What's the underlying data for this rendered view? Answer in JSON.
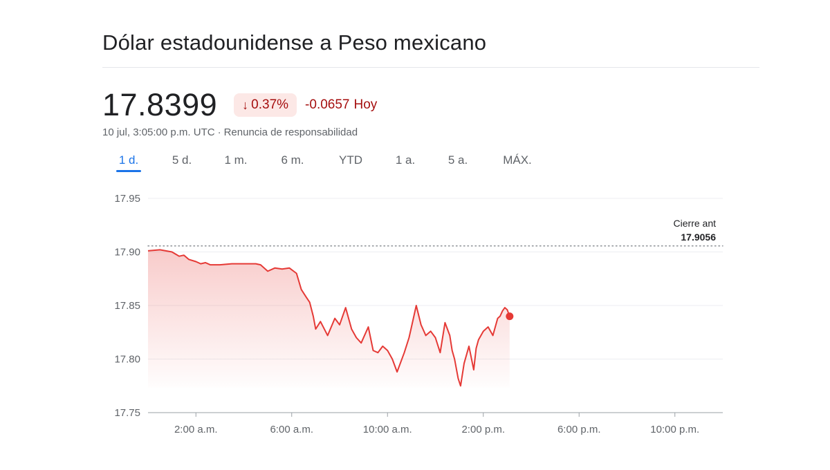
{
  "header": {
    "title": "Dólar estadounidense a Peso mexicano"
  },
  "quote": {
    "price": "17.8399",
    "change_percent": "0.37%",
    "change_abs": "-0.0657",
    "change_period": "Hoy",
    "direction_icon": "arrow-down-icon",
    "timestamp": "10 jul, 3:05:00 p.m. UTC",
    "separator": "·",
    "disclaimer": "Renuncia de responsabilidad"
  },
  "tabs": [
    {
      "label": "1 d.",
      "active": true
    },
    {
      "label": "5 d.",
      "active": false
    },
    {
      "label": "1 m.",
      "active": false
    },
    {
      "label": "6 m.",
      "active": false
    },
    {
      "label": "YTD",
      "active": false
    },
    {
      "label": "1 a.",
      "active": false
    },
    {
      "label": "5 a.",
      "active": false
    },
    {
      "label": "MÁX.",
      "active": false
    }
  ],
  "colors": {
    "line": "#e53935",
    "negative_text": "#a50e0e",
    "negative_badge_bg": "#fce8e6",
    "active_tab": "#1a73e8"
  },
  "chart_data": {
    "type": "line",
    "ylim": [
      17.75,
      17.95
    ],
    "yticks": [
      17.95,
      17.9,
      17.85,
      17.8,
      17.75
    ],
    "ytick_labels": [
      "17.95",
      "17.90",
      "17.85",
      "17.80",
      "17.75"
    ],
    "xlim": [
      0,
      24
    ],
    "xticks": [
      2,
      6,
      10,
      14,
      18,
      22
    ],
    "xtick_labels": [
      "2:00 a.m.",
      "6:00 a.m.",
      "10:00 a.m.",
      "2:00 p.m.",
      "6:00 p.m.",
      "10:00 p.m."
    ],
    "grid": true,
    "previous_close": {
      "label": "Cierre ant",
      "value": 17.9056,
      "value_label": "17.9056"
    },
    "series": [
      {
        "x": [
          0,
          0.5,
          1.0,
          1.3,
          1.5,
          1.7,
          2.0,
          2.2,
          2.4,
          2.6,
          3.0,
          3.5,
          4.0,
          4.5,
          4.7,
          5.0,
          5.3,
          5.6,
          5.9,
          6.2,
          6.4,
          6.6,
          6.75,
          6.9,
          7.0,
          7.2,
          7.5,
          7.8,
          8.0,
          8.25,
          8.5,
          8.7,
          8.9,
          9.2,
          9.4,
          9.6,
          9.8,
          9.9,
          10.0,
          10.2,
          10.4,
          10.7,
          10.9,
          11.0,
          11.2,
          11.4,
          11.6,
          11.8,
          12.0,
          12.2,
          12.4,
          12.6,
          12.7,
          12.8,
          12.95,
          13.05,
          13.2,
          13.4,
          13.6,
          13.7,
          13.8,
          14.0,
          14.2,
          14.4,
          14.6,
          14.7,
          14.8,
          14.9,
          15.0,
          15.1
        ],
        "y": [
          17.901,
          17.902,
          17.9,
          17.896,
          17.897,
          17.893,
          17.891,
          17.889,
          17.89,
          17.888,
          17.888,
          17.889,
          17.889,
          17.889,
          17.888,
          17.882,
          17.885,
          17.884,
          17.885,
          17.88,
          17.865,
          17.858,
          17.853,
          17.84,
          17.828,
          17.835,
          17.822,
          17.838,
          17.832,
          17.848,
          17.828,
          17.82,
          17.815,
          17.83,
          17.808,
          17.806,
          17.812,
          17.81,
          17.808,
          17.8,
          17.788,
          17.806,
          17.82,
          17.83,
          17.85,
          17.832,
          17.822,
          17.826,
          17.82,
          17.806,
          17.834,
          17.822,
          17.808,
          17.8,
          17.782,
          17.775,
          17.796,
          17.812,
          17.79,
          17.81,
          17.818,
          17.826,
          17.83,
          17.822,
          17.838,
          17.84,
          17.845,
          17.848,
          17.846,
          17.8399
        ]
      }
    ]
  }
}
